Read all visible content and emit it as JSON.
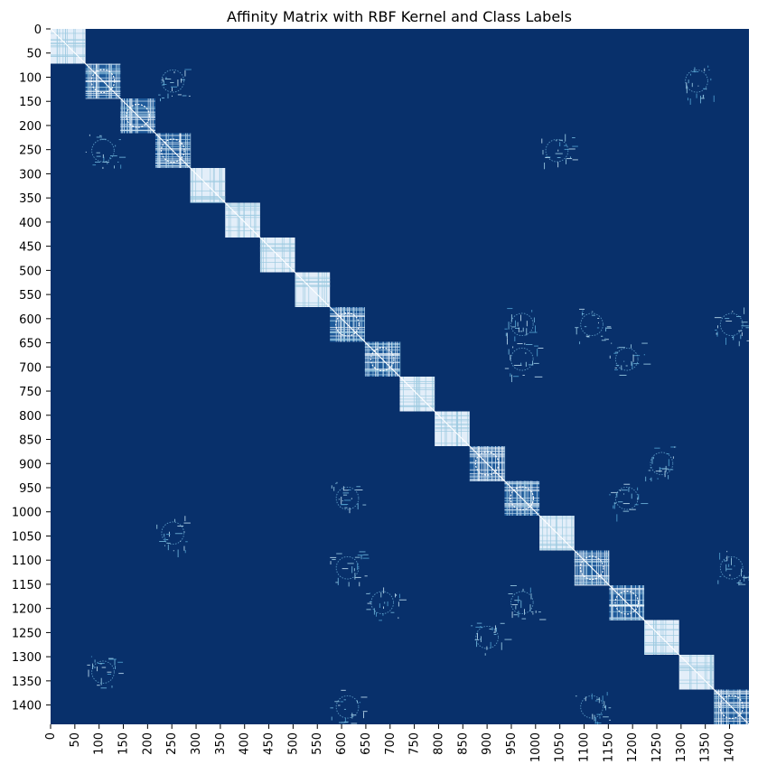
{
  "chart_data": {
    "type": "heatmap",
    "title": "Affinity Matrix with RBF Kernel and Class Labels",
    "xlabel": "",
    "ylabel": "",
    "n": 1440,
    "xlim": [
      0,
      1440
    ],
    "ylim": [
      0,
      1440
    ],
    "x_ticks": [
      "0",
      "50",
      "100",
      "150",
      "200",
      "250",
      "300",
      "350",
      "400",
      "450",
      "500",
      "550",
      "600",
      "650",
      "700",
      "750",
      "800",
      "850",
      "900",
      "950",
      "1000",
      "1050",
      "1100",
      "1150",
      "1200",
      "1250",
      "1300",
      "1350",
      "1400"
    ],
    "y_ticks": [
      "0",
      "50",
      "100",
      "150",
      "200",
      "250",
      "300",
      "350",
      "400",
      "450",
      "500",
      "550",
      "600",
      "650",
      "700",
      "750",
      "800",
      "850",
      "900",
      "950",
      "1000",
      "1050",
      "1100",
      "1150",
      "1200",
      "1250",
      "1300",
      "1350",
      "1400"
    ],
    "colormap": "Blues_r",
    "background_color": "#08306b",
    "high_color": "#e3eef9",
    "legend": "none",
    "class_blocks": [
      {
        "start": 0,
        "end": 72
      },
      {
        "start": 72,
        "end": 144
      },
      {
        "start": 144,
        "end": 216
      },
      {
        "start": 216,
        "end": 288
      },
      {
        "start": 288,
        "end": 360
      },
      {
        "start": 360,
        "end": 432
      },
      {
        "start": 432,
        "end": 504
      },
      {
        "start": 504,
        "end": 576
      },
      {
        "start": 576,
        "end": 648
      },
      {
        "start": 648,
        "end": 720
      },
      {
        "start": 720,
        "end": 792
      },
      {
        "start": 792,
        "end": 864
      },
      {
        "start": 864,
        "end": 936
      },
      {
        "start": 936,
        "end": 1008
      },
      {
        "start": 1008,
        "end": 1080
      },
      {
        "start": 1080,
        "end": 1152
      },
      {
        "start": 1152,
        "end": 1224
      },
      {
        "start": 1224,
        "end": 1296
      },
      {
        "start": 1296,
        "end": 1368
      },
      {
        "start": 1368,
        "end": 1440
      }
    ],
    "off_diagonal_blocks": [
      {
        "rows": [
          576,
          648
        ],
        "cols": [
          936,
          1008
        ]
      },
      {
        "rows": [
          576,
          648
        ],
        "cols": [
          1080,
          1152
        ]
      },
      {
        "rows": [
          576,
          648
        ],
        "cols": [
          1368,
          1440
        ]
      },
      {
        "rows": [
          648,
          720
        ],
        "cols": [
          936,
          1008
        ]
      },
      {
        "rows": [
          648,
          720
        ],
        "cols": [
          1152,
          1224
        ]
      },
      {
        "rows": [
          936,
          1008
        ],
        "cols": [
          576,
          648
        ]
      },
      {
        "rows": [
          936,
          1008
        ],
        "cols": [
          1152,
          1224
        ]
      },
      {
        "rows": [
          1080,
          1152
        ],
        "cols": [
          576,
          648
        ]
      },
      {
        "rows": [
          1080,
          1152
        ],
        "cols": [
          1368,
          1440
        ]
      },
      {
        "rows": [
          1152,
          1224
        ],
        "cols": [
          648,
          720
        ]
      },
      {
        "rows": [
          1152,
          1224
        ],
        "cols": [
          936,
          1008
        ]
      },
      {
        "rows": [
          1368,
          1440
        ],
        "cols": [
          576,
          648
        ]
      },
      {
        "rows": [
          1368,
          1440
        ],
        "cols": [
          1080,
          1152
        ]
      },
      {
        "rows": [
          216,
          288
        ],
        "cols": [
          72,
          144
        ]
      },
      {
        "rows": [
          72,
          144
        ],
        "cols": [
          216,
          288
        ]
      },
      {
        "rows": [
          1008,
          1080
        ],
        "cols": [
          216,
          288
        ]
      },
      {
        "rows": [
          216,
          288
        ],
        "cols": [
          1008,
          1080
        ]
      },
      {
        "rows": [
          864,
          936
        ],
        "cols": [
          1224,
          1296
        ]
      },
      {
        "rows": [
          1224,
          1296
        ],
        "cols": [
          864,
          936
        ]
      },
      {
        "rows": [
          72,
          144
        ],
        "cols": [
          1296,
          1368
        ]
      },
      {
        "rows": [
          1296,
          1368
        ],
        "cols": [
          72,
          144
        ]
      }
    ]
  }
}
